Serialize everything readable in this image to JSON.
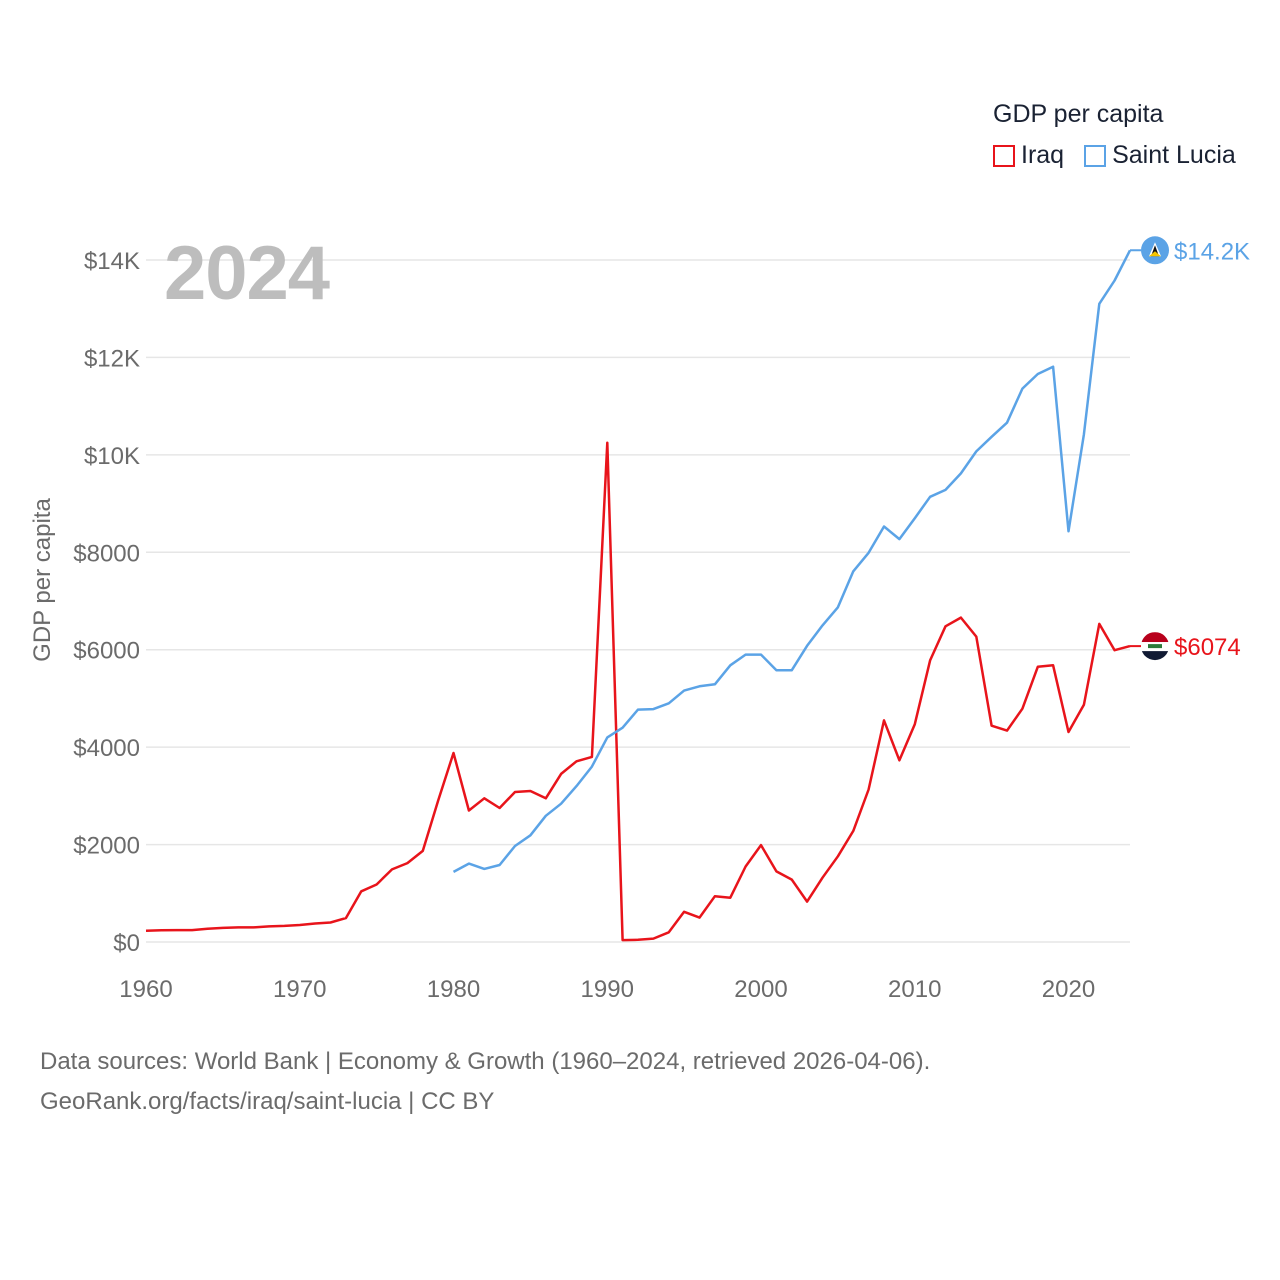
{
  "legend": {
    "title": "GDP per capita",
    "items": [
      {
        "label": "Iraq",
        "color": "#e8141b"
      },
      {
        "label": "Saint Lucia",
        "color": "#5ba3e6"
      }
    ]
  },
  "year_label": "2024",
  "footer": {
    "line1": "Data sources: World Bank | Economy & Growth (1960–2024, retrieved 2026-04-06).",
    "line2": "GeoRank.org/facts/iraq/saint-lucia | CC BY"
  },
  "chart_data": {
    "type": "line",
    "title": "GDP per capita",
    "xlabel": "",
    "ylabel": "GDP per capita",
    "xlim": [
      1960,
      2024
    ],
    "ylim": [
      0,
      14000
    ],
    "yticks": [
      0,
      2000,
      4000,
      6000,
      8000,
      10000,
      12000,
      14000
    ],
    "ytick_labels": [
      "$0",
      "$2000",
      "$4000",
      "$6000",
      "$8000",
      "$10K",
      "$12K",
      "$14K"
    ],
    "xticks": [
      1960,
      1970,
      1980,
      1990,
      2000,
      2010,
      2020
    ],
    "xtick_labels": [
      "1960",
      "1970",
      "1980",
      "1990",
      "2000",
      "2010",
      "2020"
    ],
    "grid": true,
    "series": [
      {
        "name": "Iraq",
        "color": "#e8141b",
        "end_label": "$6074",
        "x": [
          1960,
          1961,
          1962,
          1963,
          1964,
          1965,
          1966,
          1967,
          1968,
          1969,
          1970,
          1971,
          1972,
          1973,
          1974,
          1975,
          1976,
          1977,
          1978,
          1979,
          1980,
          1981,
          1982,
          1983,
          1984,
          1985,
          1986,
          1987,
          1988,
          1989,
          1990,
          1991,
          1992,
          1993,
          1994,
          1995,
          1996,
          1997,
          1998,
          1999,
          2000,
          2001,
          2002,
          2003,
          2004,
          2005,
          2006,
          2007,
          2008,
          2009,
          2010,
          2011,
          2012,
          2013,
          2014,
          2015,
          2016,
          2017,
          2018,
          2019,
          2020,
          2021,
          2022,
          2023,
          2024
        ],
        "y": [
          230,
          240,
          245,
          245,
          270,
          290,
          300,
          300,
          320,
          330,
          350,
          380,
          400,
          490,
          1040,
          1180,
          1490,
          1620,
          1870,
          2900,
          3880,
          2700,
          2950,
          2750,
          3080,
          3100,
          2950,
          3450,
          3710,
          3800,
          10250,
          40,
          45,
          70,
          200,
          620,
          500,
          940,
          910,
          1550,
          1990,
          1450,
          1280,
          830,
          1320,
          1760,
          2280,
          3130,
          4550,
          3730,
          4470,
          5780,
          6480,
          6660,
          6270,
          4440,
          4340,
          4790,
          5650,
          5680,
          4310,
          4870,
          6530,
          5990,
          6074
        ]
      },
      {
        "name": "Saint Lucia",
        "color": "#5ba3e6",
        "end_label": "$14.2K",
        "x": [
          1980,
          1981,
          1982,
          1983,
          1984,
          1985,
          1986,
          1987,
          1988,
          1989,
          1990,
          1991,
          1992,
          1993,
          1994,
          1995,
          1996,
          1997,
          1998,
          1999,
          2000,
          2001,
          2002,
          2003,
          2004,
          2005,
          2006,
          2007,
          2008,
          2009,
          2010,
          2011,
          2012,
          2013,
          2014,
          2015,
          2016,
          2017,
          2018,
          2019,
          2020,
          2021,
          2022,
          2023,
          2024
        ],
        "y": [
          1440,
          1610,
          1500,
          1580,
          1970,
          2190,
          2590,
          2840,
          3200,
          3600,
          4200,
          4400,
          4770,
          4780,
          4900,
          5160,
          5250,
          5290,
          5680,
          5900,
          5900,
          5580,
          5580,
          6080,
          6500,
          6870,
          7610,
          7990,
          8530,
          8270,
          8700,
          9140,
          9280,
          9620,
          10070,
          10370,
          10660,
          11360,
          11660,
          11810,
          8430,
          10420,
          13100,
          13580,
          14200
        ]
      }
    ]
  }
}
